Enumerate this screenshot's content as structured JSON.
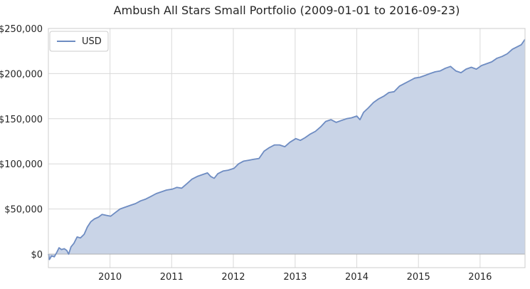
{
  "chart_data": {
    "type": "area",
    "title": "Ambush All Stars Small Portfolio (2009-01-01 to 2016-09-23)",
    "xlabel": "",
    "ylabel": "",
    "x_range": [
      "2009-01-01",
      "2016-09-23"
    ],
    "ylim": [
      -15000,
      250000
    ],
    "x_ticks": [
      "2010",
      "2011",
      "2012",
      "2013",
      "2014",
      "2015",
      "2016"
    ],
    "y_ticks": [
      "$0",
      "$50,000",
      "$100,000",
      "$150,000",
      "$200,000",
      "$250,000"
    ],
    "grid": true,
    "legend": {
      "position": "top-left",
      "entries": [
        "USD"
      ]
    },
    "colors": {
      "line": "#6e8cc2",
      "fill": "#c9d4e7",
      "grid": "#d9d9d9",
      "zero_line": "#b0b0b0"
    },
    "series": [
      {
        "name": "USD",
        "points": [
          [
            "2009-01-01",
            0
          ],
          [
            "2009-01-07",
            -6000
          ],
          [
            "2009-01-20",
            -2000
          ],
          [
            "2009-02-05",
            -3000
          ],
          [
            "2009-02-20",
            2000
          ],
          [
            "2009-03-05",
            7000
          ],
          [
            "2009-03-20",
            5000
          ],
          [
            "2009-04-05",
            6000
          ],
          [
            "2009-04-20",
            4000
          ],
          [
            "2009-05-01",
            0
          ],
          [
            "2009-05-15",
            8000
          ],
          [
            "2009-06-01",
            12000
          ],
          [
            "2009-06-20",
            19000
          ],
          [
            "2009-07-10",
            18000
          ],
          [
            "2009-08-01",
            22000
          ],
          [
            "2009-08-20",
            30000
          ],
          [
            "2009-09-10",
            36000
          ],
          [
            "2009-10-01",
            39000
          ],
          [
            "2009-10-25",
            41000
          ],
          [
            "2009-11-15",
            44000
          ],
          [
            "2009-12-10",
            43000
          ],
          [
            "2010-01-05",
            42000
          ],
          [
            "2010-02-01",
            46000
          ],
          [
            "2010-03-01",
            50000
          ],
          [
            "2010-04-01",
            52000
          ],
          [
            "2010-05-01",
            54000
          ],
          [
            "2010-06-01",
            56000
          ],
          [
            "2010-07-01",
            59000
          ],
          [
            "2010-08-01",
            61000
          ],
          [
            "2010-09-01",
            64000
          ],
          [
            "2010-10-01",
            67000
          ],
          [
            "2010-11-01",
            69000
          ],
          [
            "2010-12-01",
            71000
          ],
          [
            "2011-01-05",
            72000
          ],
          [
            "2011-02-01",
            74000
          ],
          [
            "2011-03-01",
            73000
          ],
          [
            "2011-04-01",
            78000
          ],
          [
            "2011-05-01",
            83000
          ],
          [
            "2011-06-01",
            86000
          ],
          [
            "2011-07-01",
            88000
          ],
          [
            "2011-08-01",
            90000
          ],
          [
            "2011-08-20",
            86000
          ],
          [
            "2011-09-10",
            84000
          ],
          [
            "2011-10-01",
            89000
          ],
          [
            "2011-11-01",
            92000
          ],
          [
            "2011-12-01",
            93000
          ],
          [
            "2012-01-05",
            95000
          ],
          [
            "2012-02-01",
            100000
          ],
          [
            "2012-03-01",
            103000
          ],
          [
            "2012-04-01",
            104000
          ],
          [
            "2012-05-01",
            105000
          ],
          [
            "2012-06-01",
            106000
          ],
          [
            "2012-07-01",
            114000
          ],
          [
            "2012-08-01",
            118000
          ],
          [
            "2012-09-01",
            121000
          ],
          [
            "2012-10-01",
            121000
          ],
          [
            "2012-11-01",
            119000
          ],
          [
            "2012-12-01",
            124000
          ],
          [
            "2013-01-05",
            128000
          ],
          [
            "2013-02-01",
            126000
          ],
          [
            "2013-03-01",
            129000
          ],
          [
            "2013-04-01",
            133000
          ],
          [
            "2013-05-01",
            136000
          ],
          [
            "2013-06-01",
            141000
          ],
          [
            "2013-07-01",
            147000
          ],
          [
            "2013-08-01",
            149000
          ],
          [
            "2013-09-01",
            146000
          ],
          [
            "2013-10-01",
            148000
          ],
          [
            "2013-11-01",
            150000
          ],
          [
            "2013-12-01",
            151000
          ],
          [
            "2014-01-01",
            153000
          ],
          [
            "2014-01-20",
            149000
          ],
          [
            "2014-02-10",
            157000
          ],
          [
            "2014-03-10",
            162000
          ],
          [
            "2014-04-10",
            168000
          ],
          [
            "2014-05-10",
            172000
          ],
          [
            "2014-06-10",
            175000
          ],
          [
            "2014-07-10",
            179000
          ],
          [
            "2014-08-10",
            180000
          ],
          [
            "2014-09-10",
            186000
          ],
          [
            "2014-10-10",
            189000
          ],
          [
            "2014-11-10",
            192000
          ],
          [
            "2014-12-10",
            195000
          ],
          [
            "2015-01-10",
            196000
          ],
          [
            "2015-02-10",
            198000
          ],
          [
            "2015-03-10",
            200000
          ],
          [
            "2015-04-10",
            202000
          ],
          [
            "2015-05-10",
            203000
          ],
          [
            "2015-06-10",
            206000
          ],
          [
            "2015-07-10",
            208000
          ],
          [
            "2015-08-10",
            203000
          ],
          [
            "2015-09-10",
            201000
          ],
          [
            "2015-10-10",
            205000
          ],
          [
            "2015-11-10",
            207000
          ],
          [
            "2015-12-10",
            205000
          ],
          [
            "2016-01-10",
            209000
          ],
          [
            "2016-02-10",
            211000
          ],
          [
            "2016-03-10",
            213000
          ],
          [
            "2016-04-10",
            217000
          ],
          [
            "2016-05-10",
            219000
          ],
          [
            "2016-06-10",
            222000
          ],
          [
            "2016-07-10",
            227000
          ],
          [
            "2016-08-10",
            230000
          ],
          [
            "2016-09-01",
            232000
          ],
          [
            "2016-09-23",
            238000
          ]
        ]
      }
    ]
  }
}
